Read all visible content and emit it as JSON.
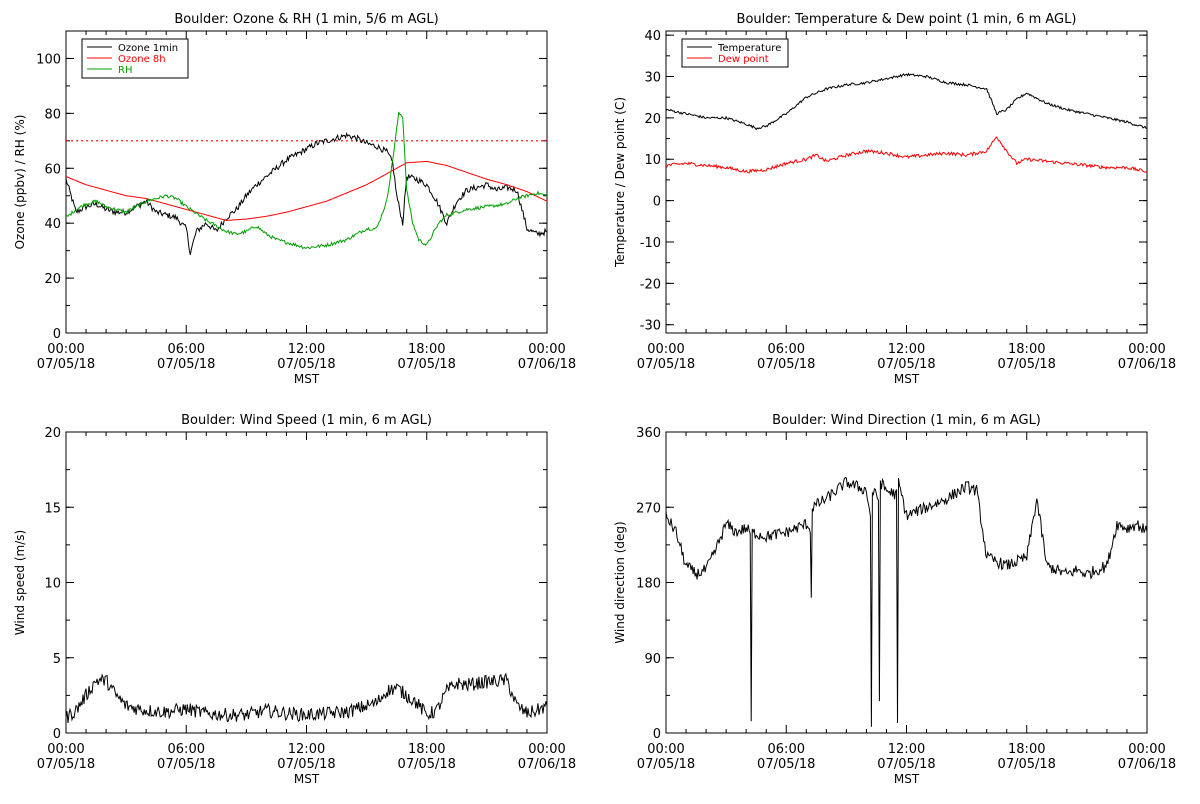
{
  "panels": [
    {
      "id": "ozone_rh",
      "title": "Boulder: Ozone & RH (1 min, 5/6 m AGL)",
      "xlabel": "MST",
      "ylabel": "Ozone (ppbv) / RH (%)",
      "xticks": [
        {
          "line1": "00:00",
          "line2": "07/05/18"
        },
        {
          "line1": "06:00",
          "line2": "07/05/18"
        },
        {
          "line1": "12:00",
          "line2": "07/05/18"
        },
        {
          "line1": "18:00",
          "line2": "07/05/18"
        },
        {
          "line1": "00:00",
          "line2": "07/06/18"
        }
      ],
      "yticks": [
        "0",
        "20",
        "40",
        "60",
        "80",
        "100"
      ],
      "legend": [
        {
          "label": "Ozone 1min",
          "color": "#000000"
        },
        {
          "label": "Ozone 8h",
          "color": "#ff0000"
        },
        {
          "label": "RH",
          "color": "#00a000"
        }
      ]
    },
    {
      "id": "temp_dew",
      "title": "Boulder: Temperature & Dew point (1 min, 6 m AGL)",
      "xlabel": "MST",
      "ylabel": "Temperature / Dew point (C)",
      "xticks": [
        {
          "line1": "00:00",
          "line2": "07/05/18"
        },
        {
          "line1": "06:00",
          "line2": "07/05/18"
        },
        {
          "line1": "12:00",
          "line2": "07/05/18"
        },
        {
          "line1": "18:00",
          "line2": "07/05/18"
        },
        {
          "line1": "00:00",
          "line2": "07/06/18"
        }
      ],
      "yticks": [
        "-30",
        "-20",
        "-10",
        "0",
        "10",
        "20",
        "30",
        "40"
      ],
      "legend": [
        {
          "label": "Temperature",
          "color": "#000000"
        },
        {
          "label": "Dew point",
          "color": "#ff0000"
        }
      ]
    },
    {
      "id": "wind_speed",
      "title": "Boulder: Wind Speed (1 min, 6 m AGL)",
      "xlabel": "MST",
      "ylabel": "Wind speed (m/s)",
      "xticks": [
        {
          "line1": "00:00",
          "line2": "07/05/18"
        },
        {
          "line1": "06:00",
          "line2": "07/05/18"
        },
        {
          "line1": "12:00",
          "line2": "07/05/18"
        },
        {
          "line1": "18:00",
          "line2": "07/05/18"
        },
        {
          "line1": "00:00",
          "line2": "07/06/18"
        }
      ],
      "yticks": [
        "0",
        "5",
        "10",
        "15",
        "20"
      ],
      "legend": []
    },
    {
      "id": "wind_dir",
      "title": "Boulder: Wind Direction (1 min, 6 m AGL)",
      "xlabel": "MST",
      "ylabel": "Wind direction (deg)",
      "xticks": [
        {
          "line1": "00:00",
          "line2": "07/05/18"
        },
        {
          "line1": "06:00",
          "line2": "07/05/18"
        },
        {
          "line1": "12:00",
          "line2": "07/05/18"
        },
        {
          "line1": "18:00",
          "line2": "07/05/18"
        },
        {
          "line1": "00:00",
          "line2": "07/06/18"
        }
      ],
      "yticks": [
        "0",
        "90",
        "180",
        "270",
        "360"
      ],
      "legend": []
    }
  ],
  "chart_data": [
    {
      "type": "line",
      "title": "Boulder: Ozone & RH (1 min, 5/6 m AGL)",
      "xlabel": "MST",
      "ylabel": "Ozone (ppbv) / RH (%)",
      "x_unit": "hours since 07/05/18 00:00 MST",
      "xlim": [
        0,
        24
      ],
      "ylim": [
        0,
        110
      ],
      "reference_line": {
        "y": 70,
        "style": "dotted",
        "color": "#ff0000"
      },
      "legend_position": "top-left",
      "series": [
        {
          "name": "Ozone 1min",
          "color": "#000000",
          "x": [
            0,
            0.5,
            1,
            1.5,
            2,
            2.5,
            3,
            3.5,
            4,
            4.5,
            5,
            5.5,
            6,
            6.2,
            6.5,
            7,
            7.5,
            8,
            8.5,
            9,
            9.5,
            10,
            10.5,
            11,
            11.5,
            12,
            12.5,
            13,
            13.5,
            14,
            14.5,
            15,
            15.5,
            16,
            16.3,
            16.5,
            16.8,
            17,
            17.5,
            18,
            18.5,
            19,
            19.5,
            20,
            20.5,
            21,
            21.5,
            22,
            22.5,
            23,
            23.5,
            24
          ],
          "y": [
            56,
            44,
            46,
            47,
            45,
            44,
            44,
            46,
            48,
            44,
            43,
            42,
            38,
            29,
            37,
            40,
            37,
            42,
            45,
            50,
            54,
            57,
            60,
            63,
            65,
            67,
            69,
            70,
            71,
            72,
            71,
            69,
            68,
            66,
            62,
            50,
            40,
            57,
            56,
            54,
            48,
            40,
            48,
            52,
            53,
            54,
            52,
            53,
            52,
            38,
            36,
            37
          ]
        },
        {
          "name": "Ozone 8h",
          "color": "#ff0000",
          "x": [
            0,
            1,
            2,
            3,
            4,
            5,
            6,
            7,
            8,
            9,
            10,
            11,
            12,
            13,
            14,
            15,
            16,
            17,
            18,
            19,
            20,
            21,
            22,
            23,
            24
          ],
          "y": [
            57,
            54,
            52,
            50,
            49,
            47,
            45,
            43,
            41,
            41.5,
            42.5,
            44,
            46,
            48,
            51,
            54,
            58,
            62,
            62.5,
            61,
            58.5,
            56,
            54,
            51.5,
            48
          ]
        },
        {
          "name": "RH",
          "color": "#00a000",
          "x": [
            0,
            0.5,
            1,
            1.5,
            2,
            3,
            4,
            5,
            5.5,
            6,
            7,
            8,
            8.5,
            9,
            9.5,
            10,
            10.5,
            11,
            12,
            13,
            14,
            15,
            15.5,
            16,
            16.3,
            16.6,
            16.8,
            17,
            17.3,
            17.6,
            18,
            18.3,
            18.6,
            19,
            20,
            21,
            22,
            22.5,
            23,
            23.5,
            24
          ],
          "y": [
            42,
            45,
            47,
            48,
            46,
            44,
            48,
            50,
            49,
            46,
            41,
            37,
            36,
            37,
            39,
            36,
            34,
            33,
            31,
            32,
            34,
            38,
            38,
            48,
            63,
            80,
            79,
            52,
            40,
            34,
            32,
            36,
            40,
            43,
            45,
            46,
            47,
            49,
            50,
            51,
            50
          ]
        }
      ]
    },
    {
      "type": "line",
      "title": "Boulder: Temperature & Dew point (1 min, 6 m AGL)",
      "xlabel": "MST",
      "ylabel": "Temperature / Dew point (C)",
      "x_unit": "hours since 07/05/18 00:00 MST",
      "xlim": [
        0,
        24
      ],
      "ylim": [
        -32,
        41
      ],
      "legend_position": "top-left",
      "series": [
        {
          "name": "Temperature",
          "color": "#000000",
          "x": [
            0,
            1,
            2,
            3,
            4,
            4.5,
            5,
            6,
            7,
            8,
            9,
            10,
            11,
            12,
            13,
            14,
            15,
            16,
            16.5,
            17,
            17.5,
            18,
            19,
            20,
            21,
            22,
            23,
            24
          ],
          "y": [
            22,
            21,
            20,
            20,
            18.5,
            17.5,
            18,
            21,
            25,
            27,
            28,
            28.5,
            29.5,
            30.5,
            30,
            28.5,
            28,
            27,
            21,
            22,
            24.5,
            26,
            23.5,
            22,
            21,
            20,
            19,
            17.5
          ]
        },
        {
          "name": "Dew point",
          "color": "#ff0000",
          "x": [
            0,
            1,
            2,
            3,
            4,
            5,
            6,
            7,
            7.5,
            8,
            9,
            10,
            11,
            12,
            13,
            14,
            15,
            15.5,
            16,
            16.5,
            17,
            17.5,
            18,
            19,
            20,
            21,
            22,
            23,
            24
          ],
          "y": [
            8.5,
            9,
            8.5,
            8,
            7,
            7.5,
            9,
            10,
            11,
            9.5,
            11,
            12,
            11.5,
            10.5,
            11,
            11.5,
            11,
            11.5,
            12,
            15.5,
            12,
            9,
            10,
            9.5,
            9,
            8.5,
            8,
            8,
            7
          ]
        }
      ]
    },
    {
      "type": "line",
      "title": "Boulder: Wind Speed (1 min, 6 m AGL)",
      "xlabel": "MST",
      "ylabel": "Wind speed (m/s)",
      "x_unit": "hours since 07/05/18 00:00 MST",
      "xlim": [
        0,
        24
      ],
      "ylim": [
        0,
        20
      ],
      "series": [
        {
          "name": "",
          "color": "#000000",
          "x": [
            0,
            0.5,
            1,
            1.5,
            2,
            2.5,
            3,
            4,
            5,
            6,
            7,
            8,
            9,
            10,
            11,
            12,
            13,
            14,
            15,
            15.5,
            16,
            16.5,
            17,
            17.5,
            18,
            18.5,
            19,
            19.5,
            20,
            21,
            22,
            22.5,
            23,
            23.5,
            24
          ],
          "y": [
            1,
            1.5,
            2.5,
            3.5,
            3.5,
            2.5,
            1.8,
            1.5,
            1.4,
            1.6,
            1.3,
            1.2,
            1.2,
            1.5,
            1.3,
            1.2,
            1.3,
            1.4,
            1.8,
            2.0,
            2.8,
            3.0,
            2.5,
            2.0,
            1.2,
            1.5,
            2.8,
            3.3,
            3.2,
            3.4,
            3.5,
            1.8,
            1.3,
            1.5,
            1.8
          ]
        }
      ]
    },
    {
      "type": "line",
      "title": "Boulder: Wind Direction (1 min, 6 m AGL)",
      "xlabel": "MST",
      "ylabel": "Wind direction (deg)",
      "x_unit": "hours since 07/05/18 00:00 MST",
      "xlim": [
        0,
        24
      ],
      "ylim": [
        0,
        360
      ],
      "series": [
        {
          "name": "",
          "color": "#000000",
          "x": [
            0,
            0.5,
            1,
            1.5,
            2,
            2.5,
            3,
            3.5,
            4,
            4.2,
            4.25,
            4.3,
            5,
            6,
            7,
            7.2,
            7.25,
            7.3,
            8,
            9,
            10,
            10.2,
            10.25,
            10.3,
            10.6,
            10.65,
            10.7,
            11,
            11.5,
            11.55,
            11.6,
            12,
            13,
            14,
            15,
            15.5,
            16,
            16.5,
            17,
            18,
            18.5,
            19,
            19.5,
            20,
            20.5,
            21,
            22,
            22.5,
            23,
            23.5,
            24
          ],
          "y": [
            260,
            240,
            200,
            190,
            195,
            220,
            250,
            240,
            245,
            240,
            10,
            240,
            235,
            240,
            250,
            245,
            160,
            270,
            280,
            300,
            290,
            260,
            5,
            290,
            280,
            40,
            300,
            290,
            285,
            10,
            300,
            260,
            270,
            280,
            295,
            290,
            210,
            205,
            200,
            210,
            280,
            200,
            195,
            190,
            195,
            190,
            200,
            250,
            245,
            250,
            240
          ]
        }
      ]
    }
  ]
}
